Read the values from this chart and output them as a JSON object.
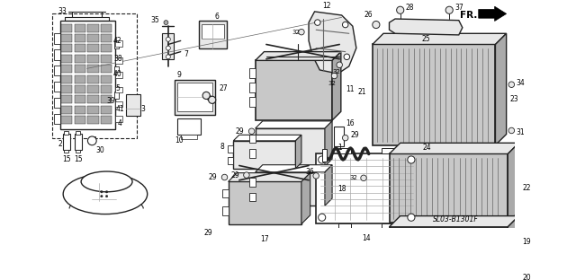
{
  "bg_color": "#ffffff",
  "fig_width": 6.4,
  "fig_height": 3.12,
  "dpi": 100,
  "diagram_code": "SL03-B1301F",
  "line_color": "#222222",
  "gray_fill": "#c8c8c8",
  "light_gray": "#e8e8e8",
  "med_gray": "#aaaaaa",
  "dark_gray": "#666666"
}
